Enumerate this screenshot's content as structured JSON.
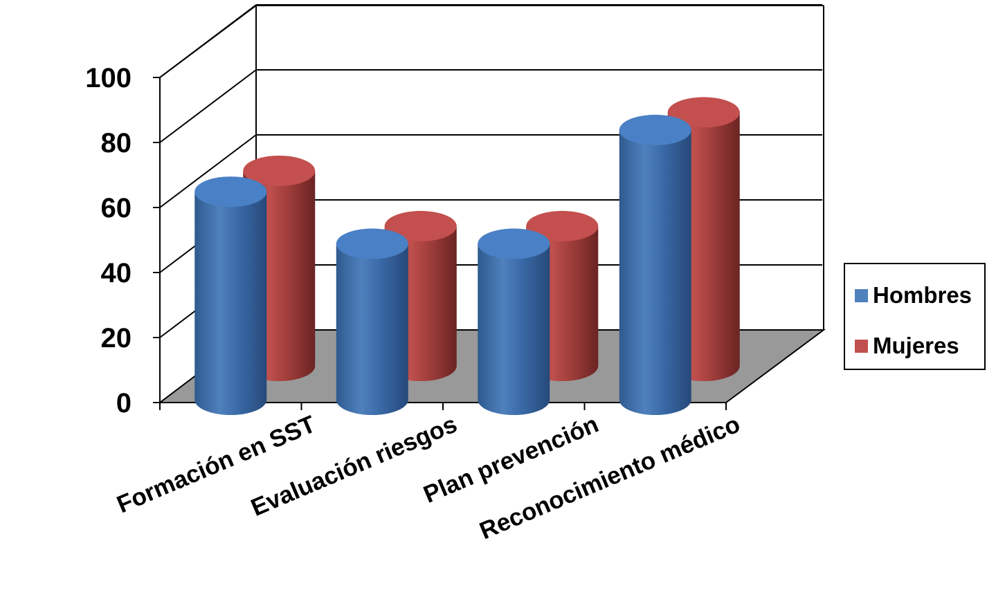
{
  "chart_data": {
    "type": "bar",
    "style": "3d-cylinder",
    "categories": [
      "Formación en SST",
      "Evaluación riesgos",
      "Plan prevención",
      "Reconocimiento médico"
    ],
    "series": [
      {
        "name": "Hombres",
        "color": "#4F81BD",
        "values": [
          64,
          48,
          48,
          83
        ]
      },
      {
        "name": "Mujeres",
        "color": "#C0504D",
        "values": [
          60,
          43,
          43,
          78
        ]
      }
    ],
    "ylim": [
      0,
      100
    ],
    "yticks": [
      "0",
      "20",
      "40",
      "60",
      "80",
      "100"
    ],
    "grid": true,
    "legend_position": "right",
    "floor_color": "#999999"
  }
}
